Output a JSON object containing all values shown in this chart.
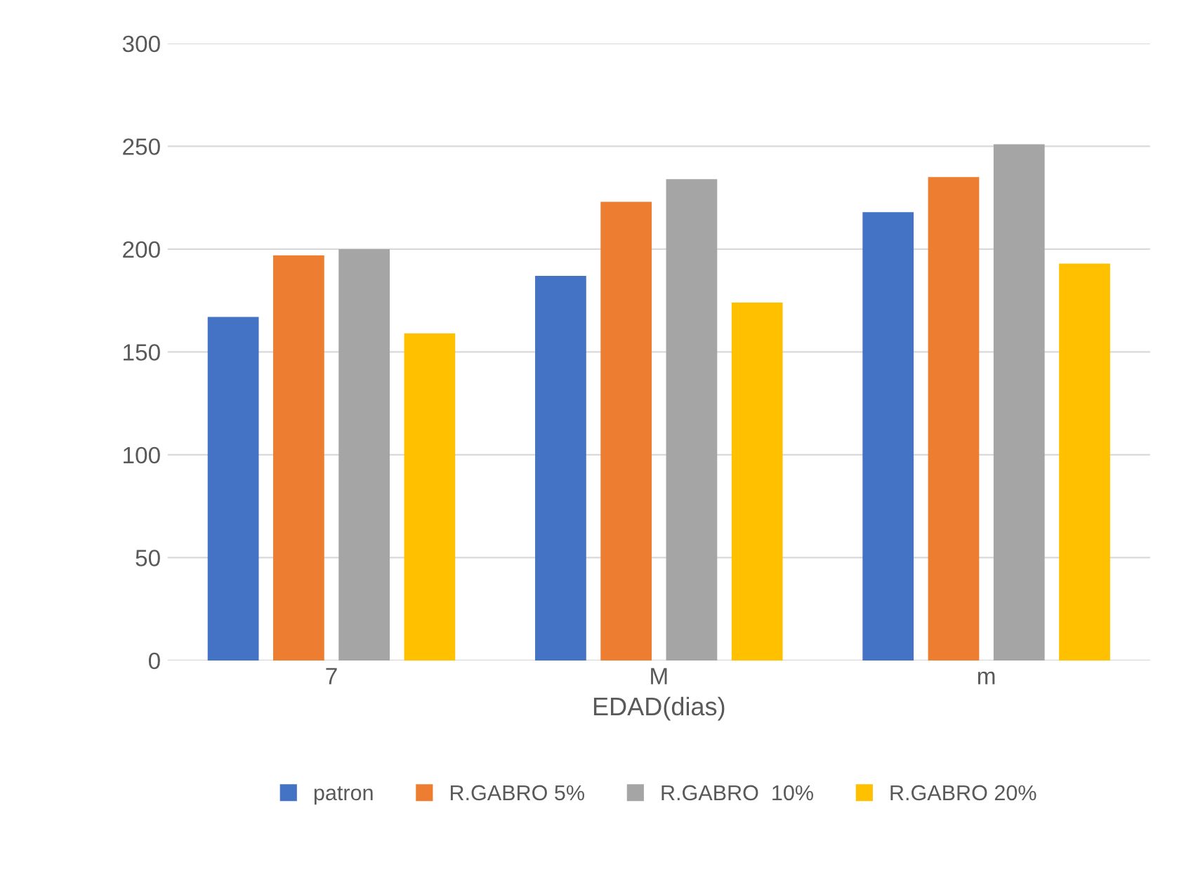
{
  "chart_data": {
    "type": "bar",
    "xlabel": "EDAD(dias)",
    "categories": [
      "7",
      "M",
      "m"
    ],
    "series": [
      {
        "name": "patron",
        "color": "#4472c4",
        "values": [
          167,
          187,
          218
        ]
      },
      {
        "name": "R.GABRO 5%",
        "color": "#ed7d31",
        "values": [
          197,
          223,
          235
        ]
      },
      {
        "name": "R.GABRO  10%",
        "color": "#a5a5a5",
        "values": [
          200,
          234,
          251
        ]
      },
      {
        "name": "R.GABRO 20%",
        "color": "#ffc000",
        "values": [
          159,
          174,
          193
        ]
      }
    ],
    "ylim": [
      0,
      300
    ],
    "yticks": [
      0,
      50,
      100,
      150,
      200,
      250,
      300
    ],
    "grid": "y",
    "legend": "bottom"
  }
}
